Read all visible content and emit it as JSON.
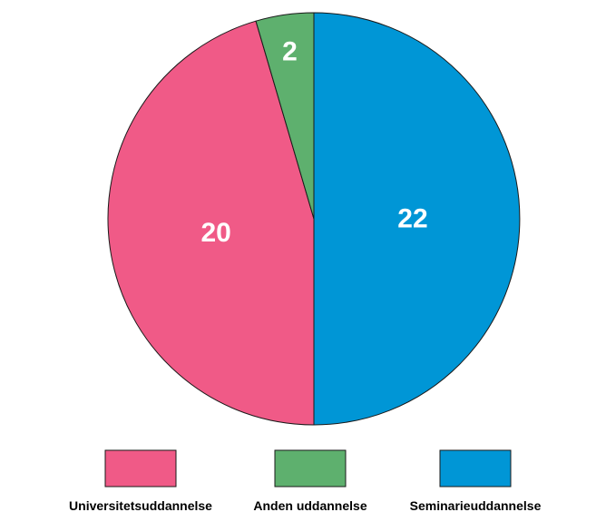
{
  "chart_data": {
    "type": "pie",
    "categories": [
      "Seminarieuddannelse",
      "Universitetsuddannelse",
      "Anden uddannelse"
    ],
    "values": [
      22,
      20,
      2
    ],
    "data_labels": [
      "22",
      "20",
      "2"
    ],
    "colors": [
      "#0096d6",
      "#f05a87",
      "#5eb06e"
    ],
    "legend": {
      "placement": "bottom",
      "order": [
        "Universitetsuddannelse",
        "Anden uddannelse",
        "Seminarieuddannelse"
      ]
    },
    "start": "top",
    "direction": "clockwise"
  }
}
